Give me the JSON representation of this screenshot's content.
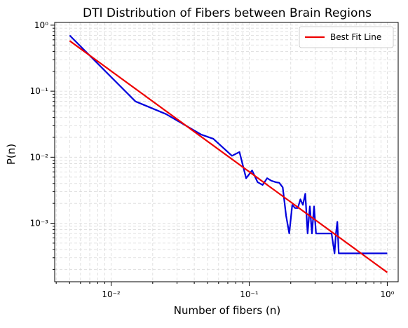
{
  "chart_data": {
    "type": "line",
    "title": "DTI Distribution of Fibers between Brain Regions",
    "xlabel": "Number of fibers (n)",
    "ylabel": "P(n)",
    "xscale": "log",
    "yscale": "log",
    "xlim": [
      0.0039,
      1.2
    ],
    "ylim": [
      0.00013,
      1.1
    ],
    "x_ticks": [
      {
        "value": 0.01,
        "label": "10⁻²"
      },
      {
        "value": 0.1,
        "label": "10⁻¹"
      },
      {
        "value": 1,
        "label": "10⁰"
      }
    ],
    "y_ticks": [
      {
        "value": 0.001,
        "label": "10⁻³"
      },
      {
        "value": 0.01,
        "label": "10⁻²"
      },
      {
        "value": 0.1,
        "label": "10⁻¹"
      },
      {
        "value": 1,
        "label": "10⁰"
      }
    ],
    "grid": true,
    "legend": {
      "placement": "top-right"
    },
    "series": [
      {
        "name": "",
        "color": "#0000dd",
        "x": [
          0.005,
          0.015,
          0.025,
          0.045,
          0.055,
          0.075,
          0.085,
          0.095,
          0.105,
          0.115,
          0.125,
          0.135,
          0.145,
          0.155,
          0.165,
          0.175,
          0.185,
          0.195,
          0.205,
          0.215,
          0.225,
          0.235,
          0.245,
          0.255,
          0.265,
          0.275,
          0.285,
          0.295,
          0.305,
          0.315,
          0.325,
          0.345,
          0.355,
          0.375,
          0.395,
          0.415,
          0.425,
          0.435,
          0.445,
          0.455,
          0.5,
          1.0
        ],
        "y": [
          0.7,
          0.07,
          0.045,
          0.022,
          0.019,
          0.0105,
          0.012,
          0.0048,
          0.0063,
          0.0042,
          0.0038,
          0.0048,
          0.0044,
          0.0042,
          0.0041,
          0.0035,
          0.0013,
          0.0007,
          0.0019,
          0.0017,
          0.0017,
          0.0023,
          0.0019,
          0.0028,
          0.0007,
          0.0018,
          0.0007,
          0.0018,
          0.0007,
          0.0007,
          0.0007,
          0.0007,
          0.0007,
          0.0007,
          0.0007,
          0.00035,
          0.0007,
          0.00105,
          0.00035,
          0.00035,
          0.00035,
          0.00035
        ]
      },
      {
        "name": "Best Fit Line",
        "color": "#ee0000",
        "x": [
          0.005,
          1.0
        ],
        "y": [
          0.58,
          0.00018
        ]
      }
    ]
  }
}
